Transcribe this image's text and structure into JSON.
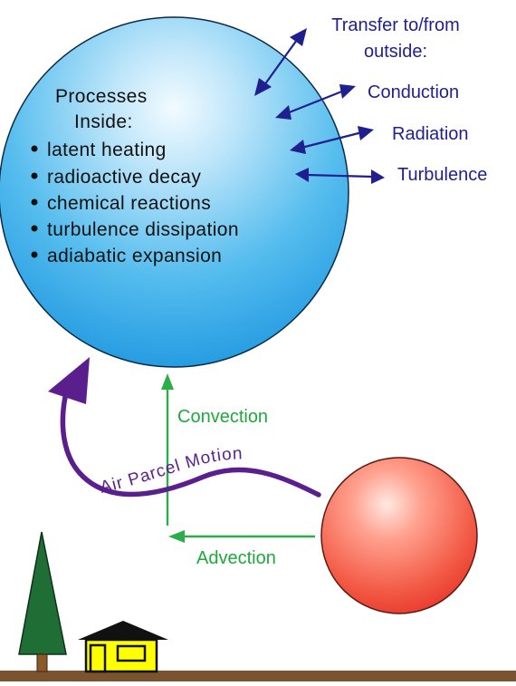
{
  "processes_inside": {
    "title_line1": "Processes",
    "title_line2": "Inside:",
    "items": [
      "latent heating",
      "radioactive decay",
      "chemical reactions",
      "turbulence dissipation",
      "adiabatic expansion"
    ]
  },
  "transfer": {
    "title_line1": "Transfer to/from",
    "title_line2": "outside:",
    "items": [
      "Conduction",
      "Radiation",
      "Turbulence"
    ]
  },
  "labels": {
    "convection": "Convection",
    "advection": "Advection",
    "air_parcel_motion": "Air Parcel Motion"
  },
  "colors": {
    "large_sphere": "#2ea8ea",
    "small_sphere": "#f0483a",
    "transfer_arrows": "#1f1f8f",
    "green_arrows": "#2aae47",
    "motion_arrow": "#5a1f8c",
    "tree": "#1e6e35",
    "house": "#ffff00",
    "ground": "#7a5430"
  }
}
